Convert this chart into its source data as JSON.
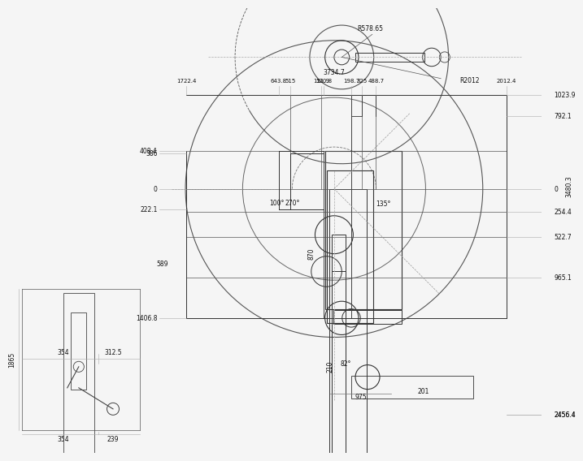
{
  "bg_color": "#f5f5f5",
  "line_color": "#222222",
  "dim_color": "#222222",
  "gray_line": "#888888",
  "fs": 5.5,
  "fs_med": 6.0,
  "right_dims": [
    [
      2456.4,
      "2456.4"
    ],
    [
      965.1,
      "965.1"
    ],
    [
      522.7,
      "522.7"
    ],
    [
      254.4,
      "254.4"
    ],
    [
      0,
      "0"
    ],
    [
      -792.1,
      "792.1"
    ],
    [
      -1023.9,
      "1023.9"
    ]
  ],
  "left_dims": [
    [
      1406.8,
      "1406.8"
    ],
    [
      222.1,
      "222.1"
    ],
    [
      0,
      "0"
    ],
    [
      -386,
      "386"
    ],
    [
      -408.4,
      "408.4"
    ]
  ],
  "bottom_dims": [
    [
      -1722.4,
      "1722.4"
    ],
    [
      -643.8,
      "643.8"
    ],
    [
      -515,
      "515"
    ],
    [
      -151.9,
      "151.9"
    ],
    [
      -120.8,
      "120.8"
    ],
    [
      198.7,
      "198.7"
    ],
    [
      325,
      "325"
    ],
    [
      488.7,
      "488.7"
    ],
    [
      2012.4,
      "2012.4"
    ]
  ],
  "label_3480": "3480.3",
  "label_3734": "3734.7",
  "label_2012r": "R2012",
  "label_r578": "R578.65",
  "label_975": "975",
  "label_870": "870",
  "label_210": "210",
  "label_589": "589",
  "label_201": "201",
  "label_82": "82°",
  "label_135": "135°",
  "label_270": "270°",
  "label_100": "100°",
  "label_1865": "1865",
  "label_354a": "354",
  "label_239": "239",
  "label_354b": "354",
  "label_312": "312.5"
}
